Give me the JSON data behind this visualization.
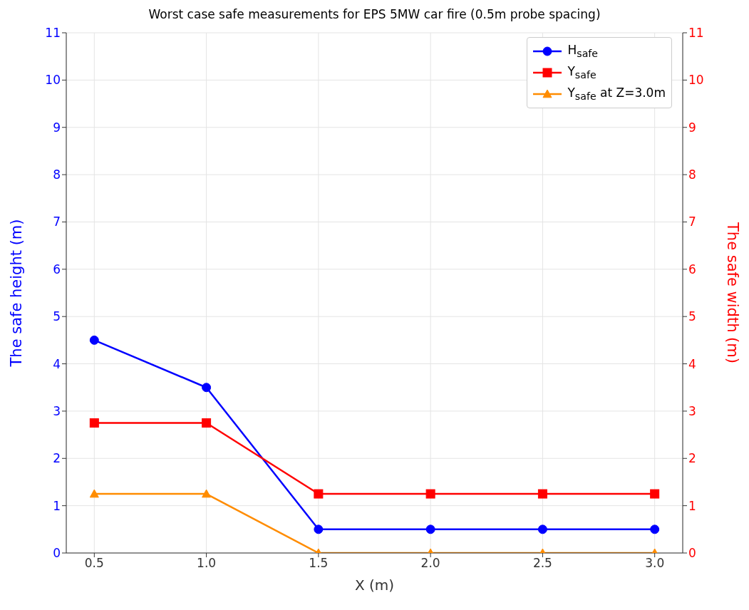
{
  "chart_data": {
    "type": "line",
    "title": "Worst case safe measurements for EPS 5MW car fire (0.5m probe spacing)",
    "xlabel": "X (m)",
    "ylabel": "The safe height (m)",
    "y2label": "The safe width (m)",
    "x": [
      0.5,
      1.0,
      1.5,
      2.0,
      2.5,
      3.0
    ],
    "series": [
      {
        "name": "H$_{safe}$",
        "color": "#0000ff",
        "marker": "circle",
        "values": [
          4.5,
          3.5,
          0.5,
          0.5,
          0.5,
          0.5
        ]
      },
      {
        "name": "Y$_{safe}$",
        "color": "#ff0000",
        "marker": "square",
        "axis": "y2",
        "values": [
          2.75,
          2.75,
          1.25,
          1.25,
          1.25,
          1.25
        ]
      },
      {
        "name": "Y$_{safe}$ at Z=3.0m",
        "color": "#ff8c00",
        "marker": "triangle",
        "axis": "y2",
        "values": [
          1.25,
          1.25,
          0,
          0,
          0,
          0
        ]
      }
    ],
    "xlim": [
      0.375,
      3.125
    ],
    "xticks": [
      {
        "value": 0.5,
        "label": "0.5"
      },
      {
        "value": 1,
        "label": "1.0"
      },
      {
        "value": 1.5,
        "label": "1.5"
      },
      {
        "value": 2,
        "label": "2.0"
      },
      {
        "value": 2.5,
        "label": "2.5"
      },
      {
        "value": 3,
        "label": "3.0"
      }
    ],
    "ylim": [
      0,
      11
    ],
    "yticks": [
      0,
      1,
      2,
      3,
      4,
      5,
      6,
      7,
      8,
      9,
      10,
      11
    ],
    "y2lim": [
      0,
      11
    ],
    "y2ticks": [
      0,
      1,
      2,
      3,
      4,
      5,
      6,
      7,
      8,
      9,
      10,
      11
    ],
    "grid": true,
    "legend": "top right"
  }
}
